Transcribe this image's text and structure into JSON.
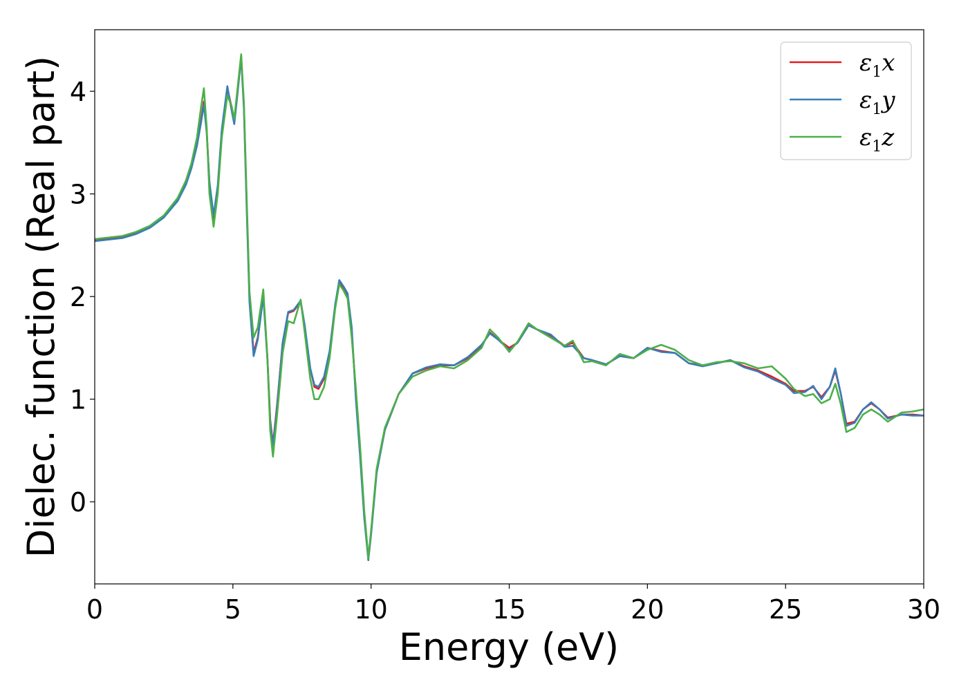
{
  "chart_data": {
    "type": "line",
    "title": "",
    "xlabel": "Energy (eV)",
    "ylabel": "Dielec. function (Real part)",
    "xlim": [
      0,
      30
    ],
    "ylim": [
      -0.8,
      4.6
    ],
    "xticks": [
      0,
      5,
      10,
      15,
      20,
      25,
      30
    ],
    "xtick_labels": [
      "0",
      "5",
      "10",
      "15",
      "20",
      "25",
      "30"
    ],
    "yticks": [
      0,
      1,
      2,
      3,
      4
    ],
    "ytick_labels": [
      "0",
      "1",
      "2",
      "3",
      "4"
    ],
    "grid": false,
    "legend_position": "top-right",
    "series": [
      {
        "name": "ε1x",
        "legend_base": "ε",
        "legend_sub": "1",
        "legend_var": "x",
        "color": "#e41a1c",
        "points": [
          [
            0,
            2.55
          ],
          [
            1,
            2.58
          ],
          [
            1.5,
            2.62
          ],
          [
            2,
            2.68
          ],
          [
            2.5,
            2.78
          ],
          [
            3,
            2.94
          ],
          [
            3.3,
            3.1
          ],
          [
            3.5,
            3.26
          ],
          [
            3.7,
            3.48
          ],
          [
            3.85,
            3.72
          ],
          [
            3.95,
            3.9
          ],
          [
            4.05,
            3.62
          ],
          [
            4.15,
            3.1
          ],
          [
            4.3,
            2.76
          ],
          [
            4.45,
            3.05
          ],
          [
            4.6,
            3.6
          ],
          [
            4.8,
            4.03
          ],
          [
            4.95,
            3.85
          ],
          [
            5.05,
            3.7
          ],
          [
            5.15,
            3.95
          ],
          [
            5.3,
            4.34
          ],
          [
            5.4,
            3.85
          ],
          [
            5.5,
            2.9
          ],
          [
            5.6,
            2.0
          ],
          [
            5.75,
            1.45
          ],
          [
            5.9,
            1.6
          ],
          [
            6.1,
            2.02
          ],
          [
            6.25,
            1.4
          ],
          [
            6.35,
            0.8
          ],
          [
            6.45,
            0.56
          ],
          [
            6.6,
            0.95
          ],
          [
            6.8,
            1.55
          ],
          [
            7.0,
            1.84
          ],
          [
            7.2,
            1.86
          ],
          [
            7.45,
            1.95
          ],
          [
            7.6,
            1.7
          ],
          [
            7.8,
            1.3
          ],
          [
            7.95,
            1.12
          ],
          [
            8.1,
            1.1
          ],
          [
            8.3,
            1.2
          ],
          [
            8.5,
            1.45
          ],
          [
            8.7,
            1.9
          ],
          [
            8.85,
            2.14
          ],
          [
            9.0,
            2.08
          ],
          [
            9.15,
            2.0
          ],
          [
            9.3,
            1.65
          ],
          [
            9.45,
            1.05
          ],
          [
            9.6,
            0.5
          ],
          [
            9.75,
            -0.1
          ],
          [
            9.9,
            -0.55
          ],
          [
            10.0,
            -0.3
          ],
          [
            10.2,
            0.3
          ],
          [
            10.5,
            0.7
          ],
          [
            11,
            1.05
          ],
          [
            11.5,
            1.25
          ],
          [
            12,
            1.3
          ],
          [
            12.5,
            1.33
          ],
          [
            13,
            1.33
          ],
          [
            13.5,
            1.4
          ],
          [
            14,
            1.52
          ],
          [
            14.3,
            1.65
          ],
          [
            14.6,
            1.58
          ],
          [
            15,
            1.5
          ],
          [
            15.3,
            1.55
          ],
          [
            15.7,
            1.72
          ],
          [
            16,
            1.68
          ],
          [
            16.5,
            1.62
          ],
          [
            17,
            1.52
          ],
          [
            17.3,
            1.55
          ],
          [
            17.7,
            1.4
          ],
          [
            18,
            1.38
          ],
          [
            18.5,
            1.34
          ],
          [
            19,
            1.42
          ],
          [
            19.5,
            1.4
          ],
          [
            20,
            1.5
          ],
          [
            20.5,
            1.47
          ],
          [
            21,
            1.45
          ],
          [
            21.5,
            1.35
          ],
          [
            22,
            1.33
          ],
          [
            22.5,
            1.35
          ],
          [
            23,
            1.38
          ],
          [
            23.5,
            1.32
          ],
          [
            24,
            1.28
          ],
          [
            24.5,
            1.22
          ],
          [
            25,
            1.15
          ],
          [
            25.3,
            1.08
          ],
          [
            25.7,
            1.08
          ],
          [
            26,
            1.12
          ],
          [
            26.3,
            1.02
          ],
          [
            26.6,
            1.12
          ],
          [
            26.8,
            1.28
          ],
          [
            27.0,
            1.05
          ],
          [
            27.2,
            0.76
          ],
          [
            27.5,
            0.78
          ],
          [
            27.8,
            0.9
          ],
          [
            28.1,
            0.96
          ],
          [
            28.4,
            0.9
          ],
          [
            28.7,
            0.82
          ],
          [
            29.2,
            0.85
          ],
          [
            29.6,
            0.85
          ],
          [
            30,
            0.84
          ]
        ]
      },
      {
        "name": "ε1y",
        "legend_base": "ε",
        "legend_sub": "1",
        "legend_var": "y",
        "color": "#377eb8",
        "points": [
          [
            0,
            2.54
          ],
          [
            1,
            2.57
          ],
          [
            1.5,
            2.61
          ],
          [
            2,
            2.67
          ],
          [
            2.5,
            2.77
          ],
          [
            3,
            2.93
          ],
          [
            3.3,
            3.09
          ],
          [
            3.5,
            3.25
          ],
          [
            3.7,
            3.47
          ],
          [
            3.85,
            3.7
          ],
          [
            3.95,
            3.87
          ],
          [
            4.05,
            3.6
          ],
          [
            4.15,
            3.12
          ],
          [
            4.3,
            2.79
          ],
          [
            4.45,
            3.08
          ],
          [
            4.6,
            3.63
          ],
          [
            4.8,
            4.05
          ],
          [
            4.95,
            3.82
          ],
          [
            5.05,
            3.68
          ],
          [
            5.15,
            3.93
          ],
          [
            5.3,
            4.33
          ],
          [
            5.4,
            3.82
          ],
          [
            5.5,
            2.85
          ],
          [
            5.6,
            1.95
          ],
          [
            5.75,
            1.42
          ],
          [
            5.9,
            1.58
          ],
          [
            6.1,
            2.0
          ],
          [
            6.25,
            1.38
          ],
          [
            6.35,
            0.78
          ],
          [
            6.45,
            0.54
          ],
          [
            6.6,
            0.93
          ],
          [
            6.8,
            1.55
          ],
          [
            7.0,
            1.85
          ],
          [
            7.2,
            1.87
          ],
          [
            7.45,
            1.96
          ],
          [
            7.6,
            1.72
          ],
          [
            7.8,
            1.3
          ],
          [
            7.95,
            1.14
          ],
          [
            8.1,
            1.12
          ],
          [
            8.3,
            1.22
          ],
          [
            8.5,
            1.47
          ],
          [
            8.7,
            1.92
          ],
          [
            8.85,
            2.16
          ],
          [
            9.0,
            2.1
          ],
          [
            9.15,
            2.03
          ],
          [
            9.3,
            1.7
          ],
          [
            9.45,
            1.0
          ],
          [
            9.6,
            0.45
          ],
          [
            9.75,
            -0.15
          ],
          [
            9.9,
            -0.57
          ],
          [
            10.0,
            -0.32
          ],
          [
            10.2,
            0.28
          ],
          [
            10.5,
            0.7
          ],
          [
            11,
            1.05
          ],
          [
            11.5,
            1.25
          ],
          [
            12,
            1.31
          ],
          [
            12.5,
            1.34
          ],
          [
            13,
            1.33
          ],
          [
            13.5,
            1.41
          ],
          [
            14,
            1.53
          ],
          [
            14.3,
            1.64
          ],
          [
            14.6,
            1.58
          ],
          [
            15,
            1.48
          ],
          [
            15.3,
            1.55
          ],
          [
            15.7,
            1.72
          ],
          [
            16,
            1.68
          ],
          [
            16.5,
            1.63
          ],
          [
            17,
            1.51
          ],
          [
            17.3,
            1.52
          ],
          [
            17.7,
            1.4
          ],
          [
            18,
            1.38
          ],
          [
            18.5,
            1.34
          ],
          [
            19,
            1.42
          ],
          [
            19.5,
            1.4
          ],
          [
            20,
            1.5
          ],
          [
            20.5,
            1.46
          ],
          [
            21,
            1.45
          ],
          [
            21.5,
            1.35
          ],
          [
            22,
            1.32
          ],
          [
            22.5,
            1.35
          ],
          [
            23,
            1.38
          ],
          [
            23.5,
            1.31
          ],
          [
            24,
            1.27
          ],
          [
            24.5,
            1.2
          ],
          [
            25,
            1.14
          ],
          [
            25.3,
            1.06
          ],
          [
            25.7,
            1.07
          ],
          [
            26,
            1.13
          ],
          [
            26.3,
            1.0
          ],
          [
            26.6,
            1.12
          ],
          [
            26.8,
            1.3
          ],
          [
            27.0,
            1.05
          ],
          [
            27.2,
            0.74
          ],
          [
            27.5,
            0.77
          ],
          [
            27.8,
            0.9
          ],
          [
            28.1,
            0.97
          ],
          [
            28.4,
            0.9
          ],
          [
            28.7,
            0.81
          ],
          [
            29.2,
            0.85
          ],
          [
            29.6,
            0.84
          ],
          [
            30,
            0.84
          ]
        ]
      },
      {
        "name": "ε1z",
        "legend_base": "ε",
        "legend_sub": "1",
        "legend_var": "z",
        "color": "#4daf4a",
        "points": [
          [
            0,
            2.56
          ],
          [
            1,
            2.59
          ],
          [
            1.5,
            2.63
          ],
          [
            2,
            2.69
          ],
          [
            2.5,
            2.79
          ],
          [
            3,
            2.96
          ],
          [
            3.3,
            3.13
          ],
          [
            3.5,
            3.3
          ],
          [
            3.7,
            3.55
          ],
          [
            3.85,
            3.85
          ],
          [
            3.95,
            4.03
          ],
          [
            4.05,
            3.65
          ],
          [
            4.15,
            3.0
          ],
          [
            4.3,
            2.68
          ],
          [
            4.45,
            3.0
          ],
          [
            4.6,
            3.55
          ],
          [
            4.8,
            3.96
          ],
          [
            4.95,
            3.86
          ],
          [
            5.05,
            3.73
          ],
          [
            5.15,
            3.98
          ],
          [
            5.3,
            4.36
          ],
          [
            5.4,
            3.88
          ],
          [
            5.5,
            2.95
          ],
          [
            5.6,
            2.05
          ],
          [
            5.75,
            1.6
          ],
          [
            5.9,
            1.7
          ],
          [
            6.1,
            2.07
          ],
          [
            6.25,
            1.4
          ],
          [
            6.35,
            0.7
          ],
          [
            6.45,
            0.44
          ],
          [
            6.6,
            0.85
          ],
          [
            6.8,
            1.45
          ],
          [
            7.0,
            1.76
          ],
          [
            7.2,
            1.74
          ],
          [
            7.45,
            1.97
          ],
          [
            7.6,
            1.65
          ],
          [
            7.8,
            1.2
          ],
          [
            7.95,
            1.0
          ],
          [
            8.1,
            1.0
          ],
          [
            8.3,
            1.12
          ],
          [
            8.5,
            1.4
          ],
          [
            8.7,
            1.88
          ],
          [
            8.85,
            2.12
          ],
          [
            9.0,
            2.06
          ],
          [
            9.15,
            1.98
          ],
          [
            9.3,
            1.6
          ],
          [
            9.45,
            1.1
          ],
          [
            9.6,
            0.55
          ],
          [
            9.75,
            -0.08
          ],
          [
            9.9,
            -0.55
          ],
          [
            10.0,
            -0.28
          ],
          [
            10.2,
            0.32
          ],
          [
            10.5,
            0.72
          ],
          [
            11,
            1.05
          ],
          [
            11.5,
            1.22
          ],
          [
            12,
            1.28
          ],
          [
            12.5,
            1.32
          ],
          [
            13,
            1.3
          ],
          [
            13.5,
            1.38
          ],
          [
            14,
            1.5
          ],
          [
            14.3,
            1.68
          ],
          [
            14.6,
            1.6
          ],
          [
            15,
            1.46
          ],
          [
            15.3,
            1.56
          ],
          [
            15.7,
            1.74
          ],
          [
            16,
            1.68
          ],
          [
            16.5,
            1.6
          ],
          [
            17,
            1.52
          ],
          [
            17.3,
            1.57
          ],
          [
            17.7,
            1.36
          ],
          [
            18,
            1.37
          ],
          [
            18.5,
            1.33
          ],
          [
            19,
            1.44
          ],
          [
            19.5,
            1.4
          ],
          [
            20,
            1.48
          ],
          [
            20.5,
            1.53
          ],
          [
            21,
            1.48
          ],
          [
            21.5,
            1.38
          ],
          [
            22,
            1.33
          ],
          [
            22.5,
            1.36
          ],
          [
            23,
            1.37
          ],
          [
            23.5,
            1.35
          ],
          [
            24,
            1.3
          ],
          [
            24.5,
            1.32
          ],
          [
            25,
            1.2
          ],
          [
            25.3,
            1.1
          ],
          [
            25.7,
            1.03
          ],
          [
            26,
            1.05
          ],
          [
            26.3,
            0.96
          ],
          [
            26.6,
            1.0
          ],
          [
            26.8,
            1.15
          ],
          [
            27.0,
            0.95
          ],
          [
            27.2,
            0.68
          ],
          [
            27.5,
            0.72
          ],
          [
            27.8,
            0.85
          ],
          [
            28.1,
            0.9
          ],
          [
            28.4,
            0.85
          ],
          [
            28.7,
            0.78
          ],
          [
            29.2,
            0.87
          ],
          [
            29.6,
            0.88
          ],
          [
            30,
            0.9
          ]
        ]
      }
    ]
  }
}
